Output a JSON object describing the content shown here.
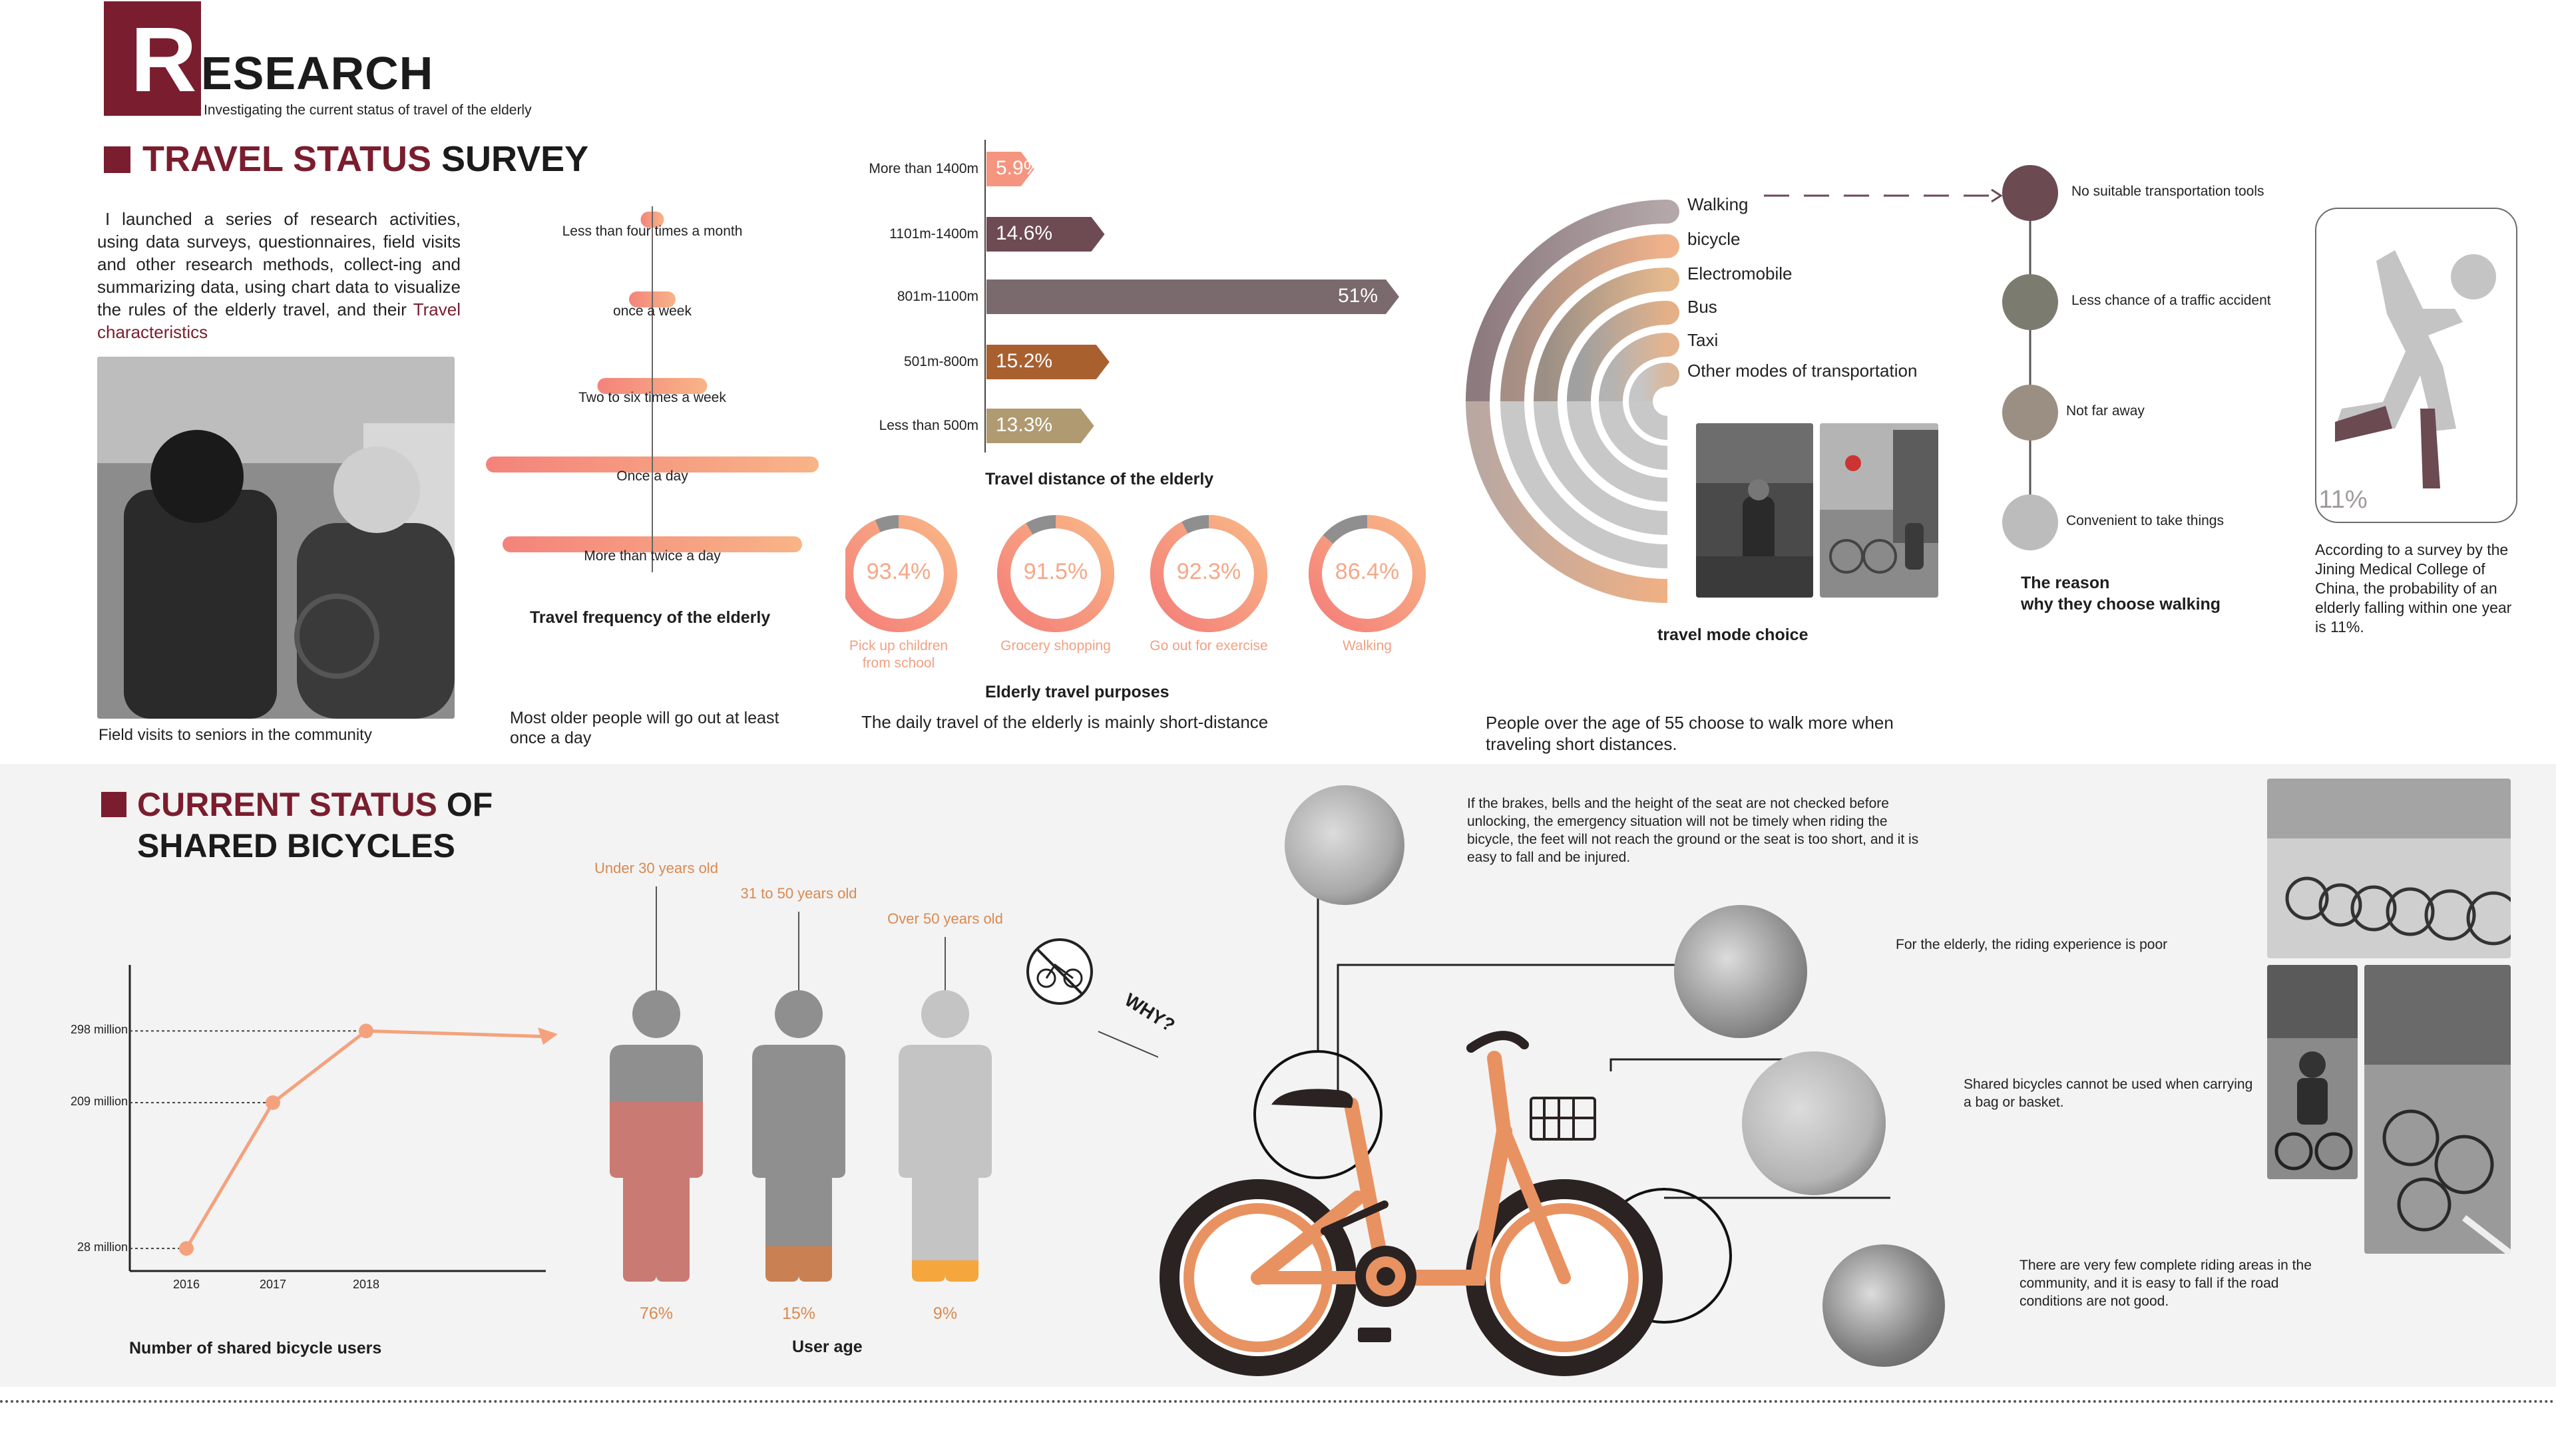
{
  "header": {
    "logo_letter": "R",
    "title": "ESEARCH",
    "subtitle": "Investigating the current status of travel of the elderly"
  },
  "section1": {
    "title_red": "TRAVEL STATUS",
    "title_black": "SURVEY",
    "intro": "I launched a series of research activities, using data surveys, questionnaires, field visits and other research methods, collect-ing and summarizing data, using chart data to visualize the rules of the elderly travel, and their",
    "intro_highlight": "Travel characteristics",
    "photo_caption": "Field visits to seniors in the community",
    "freq_title": "Travel frequency of the elderly",
    "freq_note": "Most older people will go out at least once a day",
    "dist_title": "Travel distance of the elderly",
    "purpose_title": "Elderly travel purposes",
    "purpose_note": "The daily travel of the elderly is mainly short-distance",
    "mode_title": "travel mode choice",
    "mode_note": "People over the age of 55 choose to walk more when traveling short distances.",
    "reason_title_1": "The reason",
    "reason_title_2": "why they choose walking",
    "fall_value": "11%",
    "fall_note": "According to a survey by the Jining Medical College of China, the probability of an elderly falling within one year is 11%."
  },
  "frequency": [
    {
      "label": "Less than four times a month",
      "level": 0.07
    },
    {
      "label": "once a week",
      "level": 0.14
    },
    {
      "label": "Two to six times a week",
      "level": 0.33
    },
    {
      "label": "Once a day",
      "level": 1.0
    },
    {
      "label": "More than twice a day",
      "level": 0.9
    }
  ],
  "distance": [
    {
      "label": "More than 1400m",
      "value": "5.9%",
      "pct": 5.9,
      "color": "#f5957f"
    },
    {
      "label": "1101m-1400m",
      "value": "14.6%",
      "pct": 14.6,
      "color": "#6e4a52"
    },
    {
      "label": "801m-1100m",
      "value": "51%",
      "pct": 51,
      "color": "#7a6a6e"
    },
    {
      "label": "501m-800m",
      "value": "15.2%",
      "pct": 15.2,
      "color": "#a8602f"
    },
    {
      "label": "Less than 500m",
      "value": "13.3%",
      "pct": 13.3,
      "color": "#b09a72"
    }
  ],
  "purposes": [
    {
      "label": "Pick up children from school",
      "value": "93.4%",
      "pct": 93.4
    },
    {
      "label": "Grocery shopping",
      "value": "91.5%",
      "pct": 91.5
    },
    {
      "label": "Go out for exercise",
      "value": "92.3%",
      "pct": 92.3
    },
    {
      "label": "Walking",
      "value": "86.4%",
      "pct": 86.4
    }
  ],
  "modes": [
    "Walking",
    "bicycle",
    "Electromobile",
    "Bus",
    "Taxi",
    "Other modes of transportation"
  ],
  "reasons": [
    {
      "label": "No suitable transportation tools",
      "color": "#6b4a52"
    },
    {
      "label": "Less chance of a traffic accident",
      "color": "#7b7b70"
    },
    {
      "label": "Not far away",
      "color": "#9b8f83"
    },
    {
      "label": "Convenient to take things",
      "color": "#bcbcbc"
    }
  ],
  "section2": {
    "title_red": "CURRENT STATUS",
    "title_black_1": "OF",
    "title_black_2": "SHARED BICYCLES",
    "users_title": "Number of shared bicycle users",
    "age_title": "User age",
    "why": "WHY?"
  },
  "chart_data": {
    "type": "line",
    "title": "Number of shared bicycle users",
    "x": [
      "2016",
      "2017",
      "2018"
    ],
    "series": [
      {
        "values": [
          28,
          209,
          298
        ]
      }
    ],
    "value_labels": [
      "28 million",
      "209 million",
      "298 million"
    ],
    "units": "million"
  },
  "ages": [
    {
      "label": "Under 30 years old",
      "value": "76%",
      "pct": 76,
      "color": "#c97b73",
      "head": "#8f8f8f"
    },
    {
      "label": "31 to 50 years old",
      "value": "15%",
      "pct": 15,
      "color": "#c98154",
      "head": "#8f8f8f"
    },
    {
      "label": "Over 50 years old",
      "value": "9%",
      "pct": 9,
      "color": "#f5a63c",
      "head": "#c4c4c4"
    }
  ],
  "problems": [
    "If the brakes, bells and the height of the seat are not checked before unlocking, the emergency situation will not be timely when riding the bicycle, the feet will not reach the ground or the seat is too short, and it is easy to fall and be injured.",
    "For the elderly, the riding experience is poor",
    "Shared bicycles cannot be used when carrying a bag or basket.",
    "There are very few complete riding areas in the community, and it is easy to fall if the road conditions are not good."
  ]
}
